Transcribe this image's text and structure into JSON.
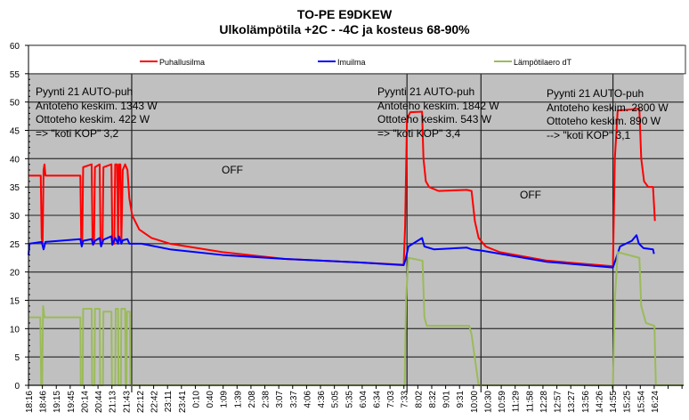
{
  "chart_data": {
    "type": "line",
    "title": "TO-PE E9DKEW",
    "subtitle": "Ulkolämpötila +2C - -4C ja kosteus 68-90%",
    "xlabel": "",
    "ylabel": "",
    "ylim": [
      0,
      60
    ],
    "yticks": [
      0,
      5,
      10,
      15,
      20,
      25,
      30,
      35,
      40,
      45,
      50,
      55,
      60
    ],
    "x_unit": "minutes since 18:16",
    "xlim": [
      0,
      1390
    ],
    "xtick_labels": [
      "18:16",
      "18:46",
      "19:15",
      "19:45",
      "20:14",
      "20:44",
      "21:13",
      "21:43",
      "22:12",
      "22:42",
      "23:11",
      "23:41",
      "0:10",
      "0:40",
      "1:09",
      "1:39",
      "2:08",
      "2:38",
      "3:07",
      "3:37",
      "4:06",
      "4:36",
      "5:05",
      "5:35",
      "6:04",
      "6:34",
      "7:03",
      "7:33",
      "8:02",
      "8:32",
      "9:01",
      "9:31",
      "10:00",
      "10:30",
      "10:59",
      "11:29",
      "11:58",
      "12:28",
      "12:57",
      "13:27",
      "13:56",
      "14:26",
      "14:55",
      "15:25",
      "15:54",
      "16:24"
    ],
    "xtick_step_minutes": 29.5,
    "grid": true,
    "legend_position": "top",
    "event_lines_minutes": [
      219,
      803,
      960,
      1240
    ],
    "series": [
      {
        "name": "Puhallusilma",
        "color": "#ff0000",
        "points": [
          [
            0,
            37
          ],
          [
            26,
            37
          ],
          [
            28,
            26
          ],
          [
            30,
            25
          ],
          [
            32,
            38
          ],
          [
            34,
            39
          ],
          [
            36,
            37
          ],
          [
            110,
            37
          ],
          [
            112,
            25
          ],
          [
            114,
            25
          ],
          [
            116,
            38.5
          ],
          [
            134,
            39
          ],
          [
            136,
            25
          ],
          [
            139,
            25
          ],
          [
            141,
            38.5
          ],
          [
            151,
            39
          ],
          [
            153,
            25
          ],
          [
            157,
            25
          ],
          [
            159,
            38.5
          ],
          [
            176,
            39
          ],
          [
            178,
            25
          ],
          [
            182,
            25
          ],
          [
            184,
            39
          ],
          [
            188,
            39
          ],
          [
            190,
            25
          ],
          [
            192,
            39
          ],
          [
            195,
            39
          ],
          [
            197,
            25
          ],
          [
            200,
            38
          ],
          [
            205,
            39
          ],
          [
            210,
            38
          ],
          [
            214,
            33
          ],
          [
            220,
            30
          ],
          [
            235,
            27.5
          ],
          [
            261,
            26
          ],
          [
            300,
            25
          ],
          [
            412,
            23.5
          ],
          [
            544,
            22.3
          ],
          [
            700,
            21.7
          ],
          [
            790,
            21.3
          ],
          [
            796,
            21.3
          ],
          [
            799,
            28
          ],
          [
            803,
            47
          ],
          [
            810,
            48.2
          ],
          [
            835,
            48.3
          ],
          [
            838,
            40
          ],
          [
            843,
            36
          ],
          [
            850,
            35
          ],
          [
            870,
            34.3
          ],
          [
            930,
            34.5
          ],
          [
            940,
            34.3
          ],
          [
            947,
            29
          ],
          [
            955,
            26
          ],
          [
            970,
            24.5
          ],
          [
            1000,
            23.5
          ],
          [
            1100,
            22
          ],
          [
            1240,
            21
          ],
          [
            1244,
            40
          ],
          [
            1250,
            48.5
          ],
          [
            1296,
            48.8
          ],
          [
            1300,
            40
          ],
          [
            1306,
            36
          ],
          [
            1315,
            35
          ],
          [
            1325,
            35
          ],
          [
            1329,
            29
          ]
        ]
      },
      {
        "name": "Imuilma",
        "color": "#0000ff",
        "points": [
          [
            0,
            23
          ],
          [
            2,
            25
          ],
          [
            28,
            25.3
          ],
          [
            32,
            24
          ],
          [
            36,
            25.3
          ],
          [
            110,
            25.8
          ],
          [
            113,
            24.5
          ],
          [
            116,
            25.5
          ],
          [
            134,
            25.8
          ],
          [
            137,
            24.8
          ],
          [
            141,
            25.5
          ],
          [
            151,
            26
          ],
          [
            154,
            24.5
          ],
          [
            159,
            25.7
          ],
          [
            176,
            26.3
          ],
          [
            178,
            24.8
          ],
          [
            184,
            26
          ],
          [
            190,
            25
          ],
          [
            192,
            26.3
          ],
          [
            197,
            25
          ],
          [
            200,
            25.6
          ],
          [
            210,
            25.8
          ],
          [
            214,
            25
          ],
          [
            240,
            25
          ],
          [
            300,
            24
          ],
          [
            412,
            23
          ],
          [
            544,
            22.3
          ],
          [
            700,
            21.7
          ],
          [
            796,
            21.2
          ],
          [
            800,
            22.2
          ],
          [
            806,
            24.5
          ],
          [
            835,
            26
          ],
          [
            840,
            24.5
          ],
          [
            860,
            24
          ],
          [
            930,
            24.3
          ],
          [
            940,
            24
          ],
          [
            960,
            23.8
          ],
          [
            1100,
            21.8
          ],
          [
            1240,
            20.8
          ],
          [
            1245,
            22
          ],
          [
            1255,
            24.5
          ],
          [
            1280,
            25.5
          ],
          [
            1290,
            26.5
          ],
          [
            1295,
            25
          ],
          [
            1305,
            24.2
          ],
          [
            1325,
            24
          ],
          [
            1327,
            23.2
          ]
        ]
      },
      {
        "name": "Lämpötilaero dT",
        "color": "#9bbb59",
        "points": [
          [
            0,
            12
          ],
          [
            25,
            12
          ],
          [
            27,
            0
          ],
          [
            29,
            0
          ],
          [
            31,
            14
          ],
          [
            34,
            12
          ],
          [
            110,
            12
          ],
          [
            111,
            0
          ],
          [
            115,
            0
          ],
          [
            116,
            13.5
          ],
          [
            134,
            13.5
          ],
          [
            135,
            0
          ],
          [
            140,
            0
          ],
          [
            141,
            13.5
          ],
          [
            151,
            13.5
          ],
          [
            152,
            0
          ],
          [
            158,
            0
          ],
          [
            159,
            13
          ],
          [
            176,
            13
          ],
          [
            177,
            0
          ],
          [
            184,
            0
          ],
          [
            185,
            13.5
          ],
          [
            190,
            13.5
          ],
          [
            191,
            0
          ],
          [
            196,
            0
          ],
          [
            197,
            13.5
          ],
          [
            205,
            13.5
          ],
          [
            206,
            0
          ],
          [
            208,
            0
          ],
          [
            209,
            13
          ],
          [
            215,
            13
          ],
          [
            216,
            0
          ],
          [
            798,
            0
          ],
          [
            801,
            15
          ],
          [
            806,
            22.5
          ],
          [
            836,
            22
          ],
          [
            840,
            12
          ],
          [
            845,
            10.5
          ],
          [
            935,
            10.5
          ],
          [
            940,
            9
          ],
          [
            955,
            0
          ],
          [
            1240,
            0
          ],
          [
            1244,
            15
          ],
          [
            1250,
            23.5
          ],
          [
            1296,
            22.5
          ],
          [
            1300,
            14
          ],
          [
            1310,
            11
          ],
          [
            1328,
            10.5
          ],
          [
            1331,
            0
          ],
          [
            1390,
            0
          ]
        ]
      }
    ],
    "annotations": [
      {
        "lines": [
          "Pyynti  21 AUTO-puh",
          "Antoteho  keskim. 1343 W",
          "Ottoteho  keskim. 422 W",
          "=> \"koti KOP\" 3,2"
        ]
      },
      {
        "lines": [
          "Pyynti  21 AUTO-puh",
          "Antoteho  keskim. 1842 W",
          "Ottoteho  keskim. 543 W",
          "=> \"koti KOP\" 3,4"
        ]
      },
      {
        "lines": [
          "Pyynti  21 AUTO-puh",
          "Antoteho  keskim. 2800 W",
          "Ottoteho  keskim. 890 W",
          "--> \"koti KOP\" 3,1"
        ]
      }
    ],
    "off_labels": [
      "OFF",
      "OFF"
    ]
  }
}
